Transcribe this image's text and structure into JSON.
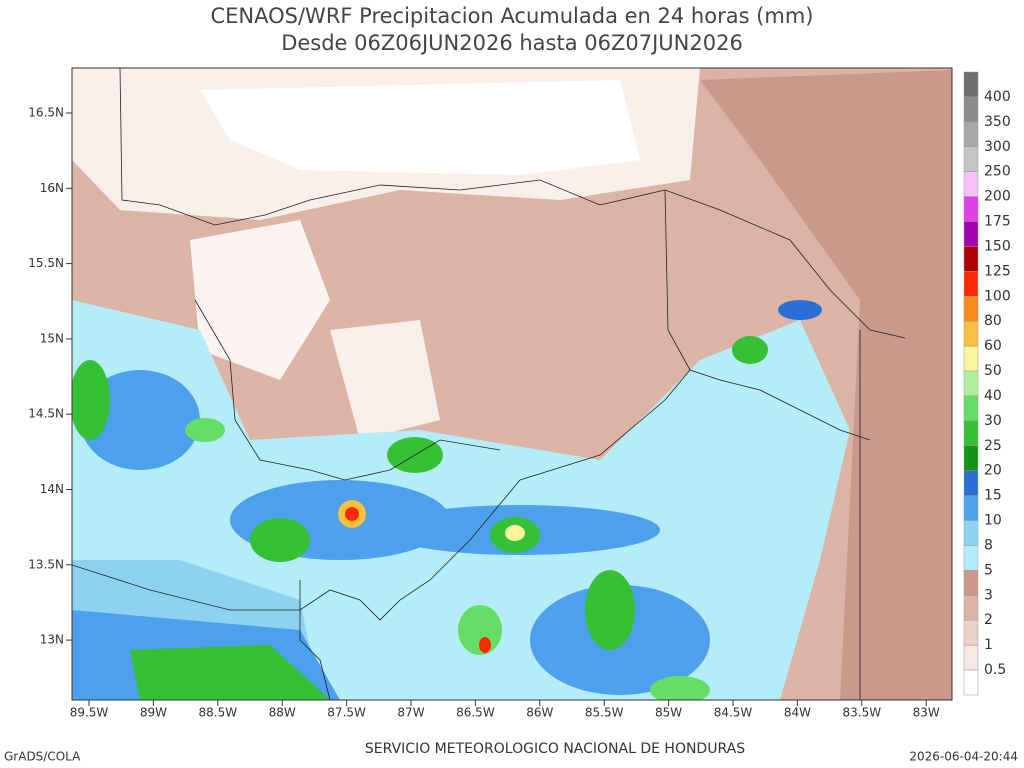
{
  "header": {
    "title_line1": "CENAOS/WRF Precipitacion Acumulada en 24 horas (mm)",
    "title_line2": "Desde 06Z06JUN2026 hasta 06Z07JUN2026"
  },
  "map": {
    "lat_labels": [
      "16.5N",
      "16N",
      "15.5N",
      "15N",
      "14.5N",
      "14N",
      "13.5N",
      "13N"
    ],
    "lon_labels": [
      "89.5W",
      "89W",
      "88.5W",
      "88W",
      "87.5W",
      "87W",
      "86.5W",
      "86W",
      "85.5W",
      "85W",
      "84.5W",
      "84W",
      "83.5W",
      "83W"
    ]
  },
  "colorbar": {
    "labels": [
      "400",
      "350",
      "300",
      "250",
      "200",
      "175",
      "150",
      "125",
      "100",
      "80",
      "60",
      "50",
      "40",
      "30",
      "25",
      "20",
      "15",
      "10",
      "8",
      "5",
      "3",
      "2",
      "1",
      "0.5"
    ],
    "colors": [
      "#6e6e6e",
      "#8c8c8c",
      "#a8a8a8",
      "#c4c4c4",
      "#f8c0f8",
      "#e040e8",
      "#a000b0",
      "#b00000",
      "#ff2800",
      "#fa8a1a",
      "#f9c040",
      "#fcf5a0",
      "#b0f0a0",
      "#66dd66",
      "#36c036",
      "#149614",
      "#2a6fd8",
      "#4ca0ec",
      "#8ed2f2",
      "#b4ecf8",
      "#c99a8c",
      "#dcb4a6",
      "#ecd2c6",
      "#f6e8e2",
      "#ffffff"
    ]
  },
  "footer": {
    "left": "GrADS/COLA",
    "center": "SERVICIO METEOROLOGICO NACIONAL DE HONDURAS",
    "right": "2026-06-04-20:44"
  }
}
